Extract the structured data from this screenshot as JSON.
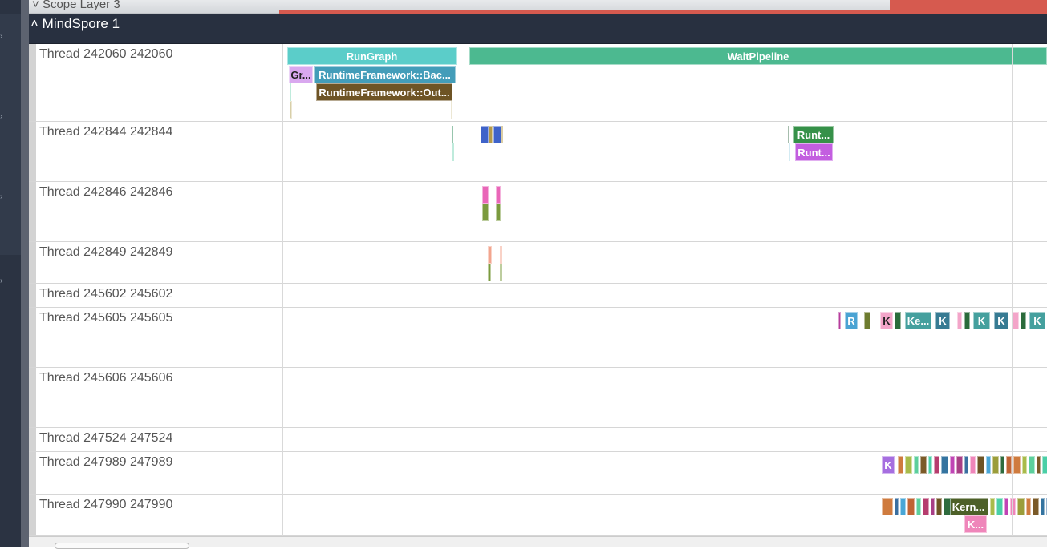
{
  "scope_layer": {
    "label": "Scope Layer 3",
    "icon": "chevron-down-icon"
  },
  "process": {
    "label": "MindSpore 1",
    "icon": "chevron-up-icon"
  },
  "threads": [
    {
      "label": "Thread 242060 242060"
    },
    {
      "label": "Thread 242844 242844"
    },
    {
      "label": "Thread 242846 242846"
    },
    {
      "label": "Thread 242849 242849"
    },
    {
      "label": "Thread 245602 245602"
    },
    {
      "label": "Thread 245605 245605"
    },
    {
      "label": "Thread 245606 245606"
    },
    {
      "label": "Thread 247524 247524"
    },
    {
      "label": "Thread 247989 247989"
    },
    {
      "label": "Thread 247990 247990"
    }
  ],
  "slices": {
    "rungraph": "RunGraph",
    "waitpipeline": "WaitPipeline",
    "gr": "Gr...",
    "rt_bac": "RuntimeFramework::Bac...",
    "rt_out": "RuntimeFramework::Out...",
    "runt1": "Runt...",
    "runt2": "Runt...",
    "r": "R",
    "k": "K",
    "ke": "Ke...",
    "kern": "Kern...",
    "kdots": "K..."
  },
  "colors": {
    "teal": "#5bcdc9",
    "green": "#4cb990",
    "lilac": "#d9a8ef",
    "blue": "#439db9",
    "brown": "#6e5425",
    "darkgreen": "#369149",
    "purple": "#c35ee0",
    "pink": "#f3a5c9",
    "red": "#d65a4f",
    "header": "#283040"
  }
}
